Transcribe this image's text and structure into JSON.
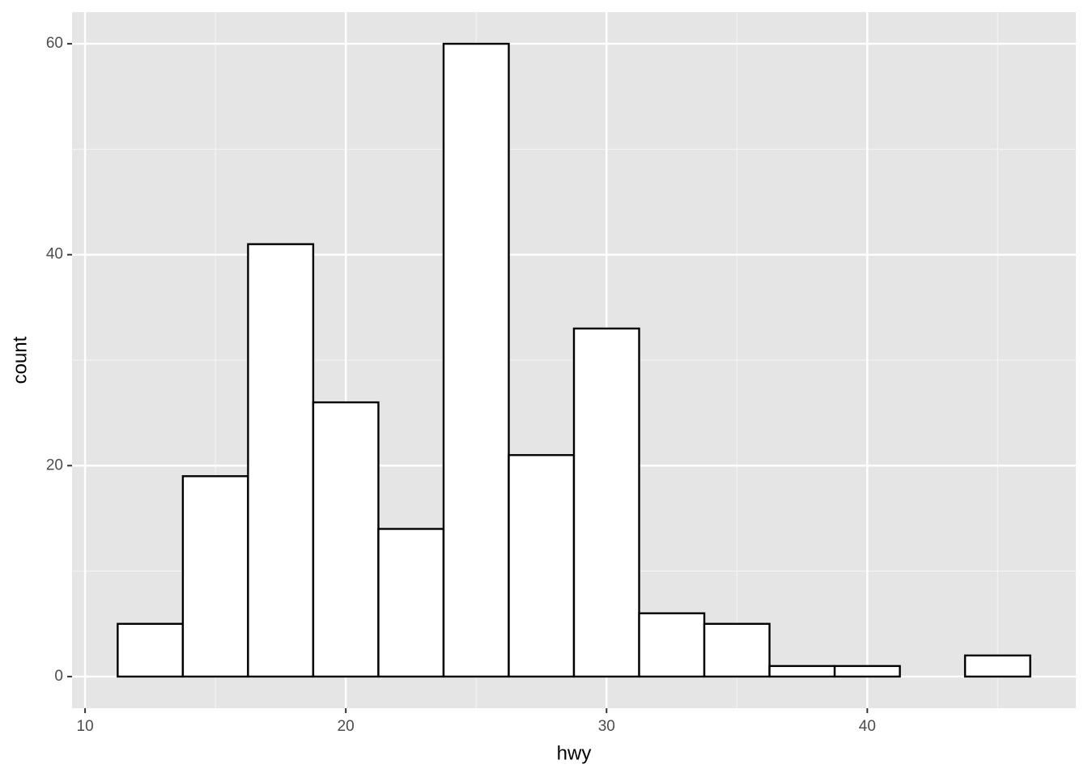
{
  "chart_data": {
    "type": "histogram",
    "xlabel": "hwy",
    "ylabel": "count",
    "bins": [
      11.25,
      13.75,
      16.25,
      18.75,
      21.25,
      23.75,
      26.25,
      28.75,
      31.25,
      33.75,
      36.25,
      38.75,
      41.25,
      43.75,
      46.25
    ],
    "values": [
      5,
      19,
      41,
      26,
      14,
      60,
      21,
      33,
      6,
      5,
      1,
      1,
      0,
      2
    ],
    "color": "#ffffff",
    "edgecolor": "#000000",
    "xlim": [
      9.5,
      48
    ],
    "ylim": [
      -3,
      63
    ],
    "xticks": [
      10,
      20,
      30,
      40
    ],
    "yticks": [
      0,
      20,
      40,
      60
    ],
    "grid": true,
    "minor_grid": true
  }
}
